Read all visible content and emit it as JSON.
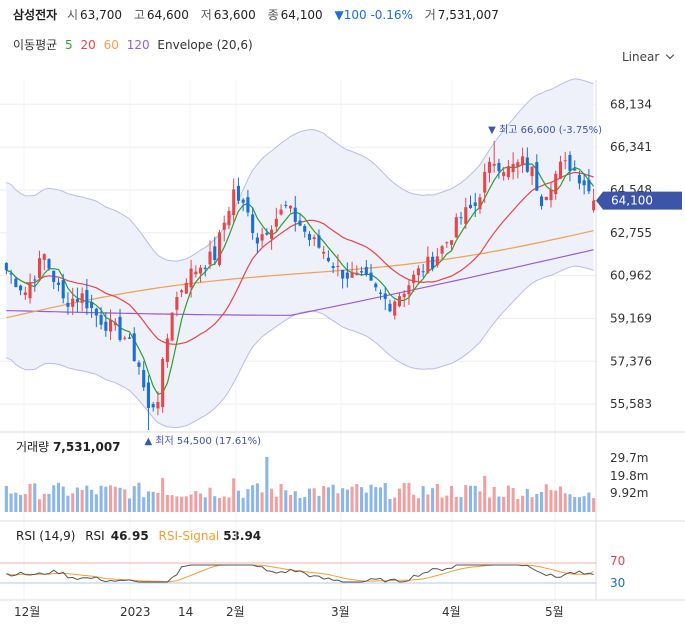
{
  "header": {
    "name": "삼성전자",
    "open_label": "시",
    "open": "63,700",
    "high_label": "고",
    "high": "64,600",
    "low_label": "저",
    "low": "63,600",
    "close_label": "종",
    "close": "64,100",
    "change": "▼100 -0.16%",
    "volume_label": "거",
    "volume": "7,531,007"
  },
  "ma_legend": {
    "title": "이동평균",
    "periods": [
      "5",
      "20",
      "60",
      "120"
    ],
    "envelope": "Envelope (20,6)"
  },
  "scale_selector": "Linear",
  "price_axis": {
    "ticks": [
      68134,
      66341,
      64548,
      62755,
      60962,
      59169,
      57376,
      55583
    ],
    "tick_labels": [
      "68,134",
      "66,341",
      "64,548",
      "62,755",
      "60,962",
      "59,169",
      "57,376",
      "55,583"
    ],
    "current_price_label": "64,100",
    "current_price": 64100
  },
  "annotations": {
    "high": "▼ 최고 66,600 (-3.75%)",
    "low": "▲ 최저 54,500 (17.61%)"
  },
  "volume_panel": {
    "title": "거래량",
    "value": "7,531,007",
    "tick_labels": [
      "29.7m",
      "19.8m",
      "9.92m"
    ]
  },
  "rsi_panel": {
    "title": "RSI (14,9)",
    "rsi_label": "RSI",
    "rsi_value": "46.95",
    "signal_label": "RSI-Signal",
    "signal_value": "53.94",
    "levels": [
      "70",
      "30"
    ]
  },
  "x_axis": {
    "labels": [
      "12월",
      "2023",
      "14",
      "2월",
      "3월",
      "4월",
      "5월"
    ]
  },
  "colors": {
    "up": "#e8454a",
    "down": "#1a6fd4",
    "ma5": "#2ca02c",
    "ma20": "#e8454a",
    "ma60": "#f0a050",
    "ma120": "#9b5bd6",
    "envelope_fill": "#eef0fa",
    "envelope_line": "#b9bde6",
    "vol_up": "#f0a0a0",
    "vol_down": "#8ab6ea",
    "rsi": "#555555",
    "signal": "#f0a030",
    "badge": "#3d55a8"
  },
  "chart_data": {
    "type": "candlestick",
    "x_range": [
      "2022-12",
      "2023-05"
    ],
    "ylim": [
      54500,
      68900
    ],
    "high": 66600,
    "low": 54500,
    "anchors_close": [
      [
        0,
        61200
      ],
      [
        4,
        60300
      ],
      [
        8,
        61800
      ],
      [
        12,
        59900
      ],
      [
        16,
        60100
      ],
      [
        19,
        59300
      ],
      [
        22,
        58800
      ],
      [
        25,
        58400
      ],
      [
        28,
        57200
      ],
      [
        30,
        55300
      ],
      [
        32,
        55900
      ],
      [
        35,
        59600
      ],
      [
        38,
        60900
      ],
      [
        41,
        61400
      ],
      [
        44,
        61800
      ],
      [
        46,
        63200
      ],
      [
        48,
        64500
      ],
      [
        51,
        63500
      ],
      [
        53,
        62500
      ],
      [
        56,
        63200
      ],
      [
        59,
        63800
      ],
      [
        62,
        63100
      ],
      [
        64,
        62500
      ],
      [
        67,
        62000
      ],
      [
        70,
        61200
      ],
      [
        73,
        60900
      ],
      [
        76,
        60700
      ],
      [
        79,
        60100
      ],
      [
        81,
        59800
      ],
      [
        84,
        60400
      ],
      [
        87,
        61100
      ],
      [
        90,
        61600
      ],
      [
        93,
        62400
      ],
      [
        96,
        63400
      ],
      [
        99,
        63900
      ],
      [
        101,
        65100
      ],
      [
        103,
        65800
      ],
      [
        106,
        65400
      ],
      [
        109,
        65700
      ],
      [
        111,
        65300
      ],
      [
        113,
        64200
      ],
      [
        115,
        64900
      ],
      [
        117,
        65500
      ],
      [
        119,
        65600
      ],
      [
        122,
        64900
      ],
      [
        124,
        64100
      ]
    ],
    "volume_ylim": [
      0,
      31000000
    ],
    "volume_last": 7531007,
    "rsi_ylim": [
      0,
      100
    ],
    "rsi_last": 46.95,
    "rsi_signal_last": 53.94
  }
}
